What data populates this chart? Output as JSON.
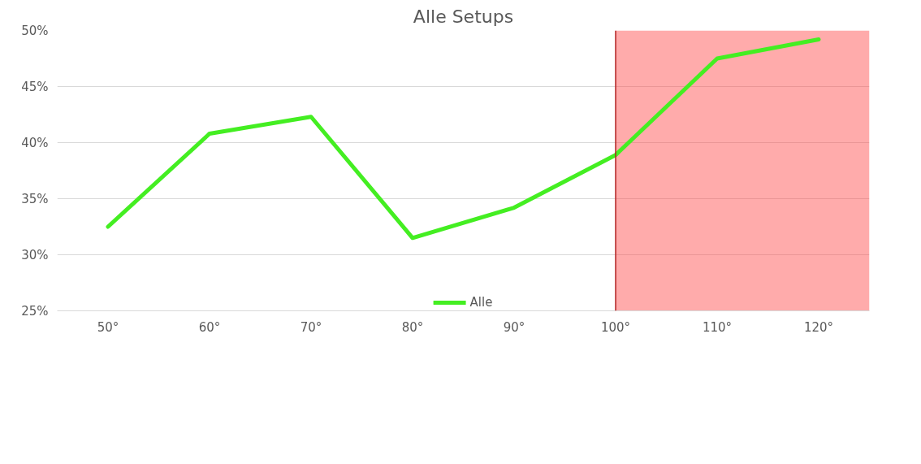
{
  "chart_data": {
    "type": "line",
    "title": "Alle Setups",
    "x": [
      50,
      60,
      70,
      80,
      90,
      100,
      110,
      120
    ],
    "series": [
      {
        "name": "Alle",
        "color": "#44ee22",
        "values": [
          32.5,
          40.8,
          42.3,
          31.5,
          34.2,
          38.9,
          47.5,
          49.2
        ]
      }
    ],
    "xlim": [
      45,
      125
    ],
    "xticks": [
      {
        "value": 50,
        "label": "50°"
      },
      {
        "value": 60,
        "label": "60°"
      },
      {
        "value": 70,
        "label": "70°"
      },
      {
        "value": 80,
        "label": "80°"
      },
      {
        "value": 90,
        "label": "90°"
      },
      {
        "value": 100,
        "label": "100°"
      },
      {
        "value": 110,
        "label": "110°"
      },
      {
        "value": 120,
        "label": "120°"
      }
    ],
    "ylim": [
      25,
      50
    ],
    "yticks": [
      {
        "value": 25,
        "label": "25%"
      },
      {
        "value": 30,
        "label": "30%"
      },
      {
        "value": 35,
        "label": "35%"
      },
      {
        "value": 40,
        "label": "40%"
      },
      {
        "value": 45,
        "label": "45%"
      },
      {
        "value": 50,
        "label": "50%"
      }
    ],
    "ref_lines": [
      {
        "axis": "x",
        "value": 100,
        "color": "#b22222"
      }
    ],
    "bands": [
      {
        "axis": "x",
        "from": 100,
        "to": 125,
        "color": "#ff4444"
      }
    ],
    "grid": "y",
    "legend": "bottom",
    "marker": "none",
    "line_style": "solid"
  }
}
